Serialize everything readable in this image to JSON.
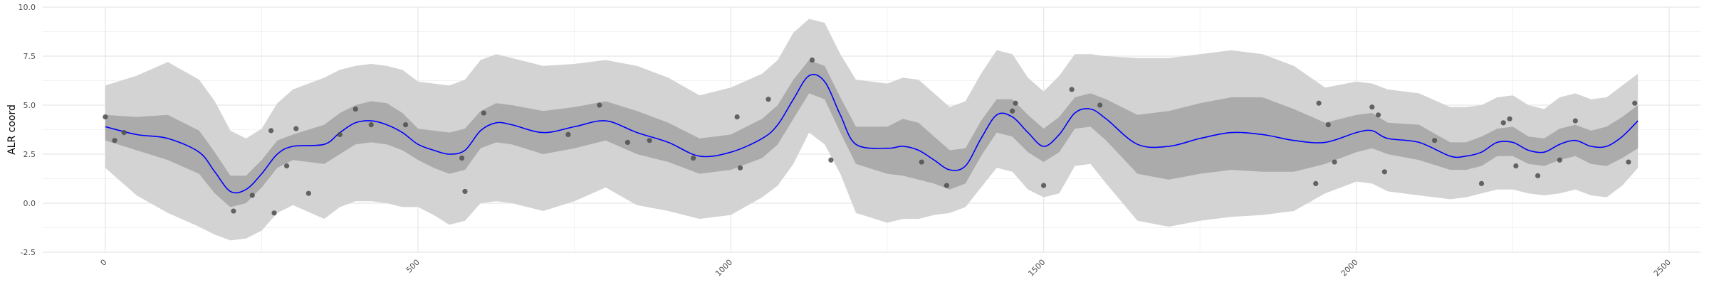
{
  "chart_data": {
    "type": "line",
    "title": "",
    "xlabel": "",
    "ylabel": "ALR coord",
    "xlim": [
      -100,
      2550
    ],
    "ylim": [
      -2.5,
      10.0
    ],
    "x_ticks": [
      0,
      500,
      1000,
      1500,
      2000,
      2500
    ],
    "y_ticks": [
      -2.5,
      0.0,
      2.5,
      5.0,
      7.5,
      10.0
    ],
    "x_tick_labels": [
      "0",
      "500",
      "1000",
      "1500",
      "2000",
      "2500"
    ],
    "y_tick_labels": [
      "-2.5",
      "0.0",
      "2.5",
      "5.0",
      "7.5",
      "10.0"
    ],
    "grid": true,
    "legend": "none",
    "colors": {
      "mean_line": "#0000ff",
      "inner_band": "#ababab",
      "outer_band": "#d3d3d3",
      "points": "#4d4d4d",
      "grid_major": "#e6e6e6",
      "grid_minor": "#f2f2f2"
    },
    "series": [
      {
        "kind": "line",
        "x": [
          0,
          50,
          100,
          150,
          175,
          200,
          225,
          250,
          275,
          300,
          350,
          375,
          400,
          425,
          450,
          475,
          500,
          525,
          550,
          575,
          600,
          625,
          650,
          700,
          750,
          800,
          850,
          900,
          950,
          1000,
          1050,
          1075,
          1100,
          1125,
          1150,
          1175,
          1200,
          1250,
          1275,
          1300,
          1325,
          1350,
          1375,
          1400,
          1425,
          1450,
          1475,
          1500,
          1525,
          1550,
          1575,
          1600,
          1650,
          1700,
          1750,
          1800,
          1850,
          1900,
          1950,
          2000,
          2025,
          2050,
          2100,
          2150,
          2175,
          2200,
          2225,
          2250,
          2275,
          2300,
          2325,
          2350,
          2375,
          2400,
          2425,
          2450
        ],
        "y": [
          3.9,
          3.5,
          3.3,
          2.6,
          1.6,
          0.6,
          0.7,
          1.5,
          2.5,
          2.9,
          3.0,
          3.6,
          4.1,
          4.2,
          4.0,
          3.6,
          3.0,
          2.7,
          2.5,
          2.7,
          3.7,
          4.1,
          4.0,
          3.6,
          3.9,
          4.2,
          3.6,
          3.1,
          2.4,
          2.6,
          3.3,
          4.0,
          5.3,
          6.5,
          6.2,
          4.5,
          3.0,
          2.8,
          2.9,
          2.7,
          2.2,
          1.7,
          1.9,
          3.3,
          4.5,
          4.4,
          3.6,
          2.9,
          3.5,
          4.6,
          4.8,
          4.3,
          3.0,
          2.9,
          3.3,
          3.6,
          3.5,
          3.2,
          3.1,
          3.6,
          3.7,
          3.3,
          3.1,
          2.4,
          2.4,
          2.6,
          3.1,
          3.1,
          2.7,
          2.6,
          3.0,
          3.2,
          2.9,
          2.9,
          3.4,
          4.2
        ]
      },
      {
        "kind": "band-inner",
        "x": [
          0,
          50,
          100,
          150,
          175,
          200,
          225,
          250,
          275,
          300,
          350,
          375,
          400,
          425,
          450,
          475,
          500,
          525,
          550,
          575,
          600,
          625,
          650,
          700,
          750,
          800,
          850,
          900,
          950,
          1000,
          1050,
          1075,
          1100,
          1125,
          1150,
          1175,
          1200,
          1250,
          1275,
          1300,
          1325,
          1350,
          1375,
          1400,
          1425,
          1450,
          1475,
          1500,
          1525,
          1550,
          1575,
          1600,
          1650,
          1700,
          1750,
          1800,
          1850,
          1900,
          1950,
          2000,
          2025,
          2050,
          2100,
          2150,
          2175,
          2200,
          2225,
          2250,
          2275,
          2300,
          2325,
          2350,
          2375,
          2400,
          2425,
          2450
        ],
        "lower": [
          3.2,
          2.7,
          2.2,
          1.5,
          0.5,
          -0.2,
          0.0,
          0.8,
          1.8,
          2.2,
          2.0,
          2.5,
          3.0,
          3.1,
          3.0,
          2.7,
          2.2,
          1.8,
          1.5,
          1.7,
          2.8,
          3.1,
          3.0,
          2.5,
          2.8,
          3.2,
          2.5,
          2.1,
          1.5,
          1.7,
          2.3,
          3.0,
          4.3,
          5.6,
          5.3,
          3.6,
          2.0,
          1.5,
          1.4,
          1.2,
          1.0,
          0.7,
          1.0,
          2.4,
          3.6,
          3.4,
          2.6,
          2.1,
          2.6,
          3.8,
          3.9,
          3.2,
          1.5,
          1.2,
          1.5,
          1.7,
          1.6,
          1.6,
          2.0,
          2.6,
          2.8,
          2.5,
          2.2,
          1.7,
          1.7,
          1.9,
          2.4,
          2.4,
          2.0,
          1.9,
          2.2,
          2.4,
          2.0,
          1.9,
          2.3,
          2.8
        ],
        "upper": [
          4.5,
          4.4,
          4.5,
          3.7,
          2.6,
          1.4,
          1.4,
          2.2,
          3.2,
          3.5,
          4.0,
          4.6,
          5.0,
          5.2,
          5.1,
          4.6,
          3.8,
          3.7,
          3.6,
          3.8,
          4.7,
          5.1,
          5.0,
          4.7,
          4.9,
          5.2,
          4.7,
          4.1,
          3.3,
          3.5,
          4.3,
          5.0,
          6.3,
          7.3,
          7.0,
          5.4,
          3.9,
          3.9,
          4.3,
          4.1,
          3.4,
          2.7,
          2.8,
          4.2,
          5.3,
          5.3,
          4.5,
          3.8,
          4.4,
          5.4,
          5.6,
          5.3,
          4.5,
          4.7,
          5.1,
          5.4,
          5.4,
          4.8,
          4.1,
          4.5,
          4.6,
          4.1,
          4.0,
          3.1,
          3.1,
          3.4,
          3.8,
          3.9,
          3.4,
          3.3,
          3.8,
          4.0,
          3.7,
          3.9,
          4.4,
          5.0
        ]
      },
      {
        "kind": "band-outer",
        "x": [
          0,
          50,
          100,
          150,
          175,
          200,
          225,
          250,
          275,
          300,
          350,
          375,
          400,
          425,
          450,
          475,
          500,
          525,
          550,
          575,
          600,
          625,
          650,
          700,
          750,
          800,
          850,
          900,
          950,
          1000,
          1050,
          1075,
          1100,
          1125,
          1150,
          1175,
          1200,
          1250,
          1275,
          1300,
          1325,
          1350,
          1375,
          1400,
          1425,
          1450,
          1475,
          1500,
          1525,
          1550,
          1575,
          1600,
          1650,
          1700,
          1750,
          1800,
          1850,
          1900,
          1950,
          2000,
          2025,
          2050,
          2100,
          2150,
          2175,
          2200,
          2225,
          2250,
          2275,
          2300,
          2325,
          2350,
          2375,
          2400,
          2425,
          2450
        ],
        "lower": [
          1.8,
          0.4,
          -0.5,
          -1.2,
          -1.6,
          -1.9,
          -1.8,
          -1.4,
          -0.5,
          -0.1,
          -0.8,
          -0.2,
          0.1,
          0.1,
          0.0,
          -0.2,
          -0.2,
          -0.6,
          -1.1,
          -0.9,
          0.0,
          0.1,
          0.0,
          -0.4,
          0.1,
          0.8,
          -0.1,
          -0.4,
          -0.8,
          -0.6,
          0.3,
          0.9,
          2.0,
          3.6,
          3.0,
          1.5,
          -0.5,
          -1.0,
          -0.8,
          -0.8,
          -0.6,
          -0.5,
          -0.2,
          0.8,
          1.8,
          1.6,
          0.7,
          0.3,
          0.5,
          1.9,
          2.0,
          1.0,
          -0.9,
          -1.2,
          -0.9,
          -0.7,
          -0.6,
          -0.4,
          0.5,
          1.1,
          1.0,
          0.6,
          0.4,
          0.2,
          0.3,
          0.5,
          0.7,
          0.7,
          0.5,
          0.4,
          0.5,
          0.7,
          0.4,
          0.3,
          0.9,
          1.8
        ],
        "upper": [
          6.0,
          6.5,
          7.2,
          6.3,
          5.2,
          3.7,
          3.3,
          3.8,
          5.1,
          5.8,
          6.4,
          6.8,
          7.0,
          7.1,
          7.0,
          6.8,
          6.2,
          6.1,
          6.0,
          6.3,
          7.3,
          7.6,
          7.4,
          7.0,
          7.1,
          7.3,
          7.0,
          6.4,
          5.5,
          5.9,
          6.6,
          7.3,
          8.7,
          9.4,
          9.2,
          7.6,
          6.3,
          6.1,
          6.4,
          6.3,
          5.6,
          4.9,
          5.2,
          6.6,
          7.8,
          7.6,
          6.4,
          5.7,
          6.5,
          7.6,
          7.6,
          7.5,
          7.4,
          7.4,
          7.6,
          7.8,
          7.6,
          7.0,
          5.9,
          6.2,
          6.1,
          5.8,
          5.6,
          4.9,
          4.9,
          5.0,
          5.4,
          5.5,
          5.0,
          4.8,
          5.4,
          5.6,
          5.3,
          5.4,
          6.0,
          6.6
        ]
      },
      {
        "kind": "points",
        "x": [
          0,
          15,
          30,
          205,
          235,
          265,
          270,
          290,
          305,
          325,
          375,
          400,
          425,
          480,
          570,
          575,
          605,
          740,
          790,
          835,
          870,
          940,
          1010,
          1015,
          1060,
          1130,
          1160,
          1305,
          1345,
          1450,
          1455,
          1500,
          1545,
          1590,
          1935,
          1940,
          1955,
          1965,
          2025,
          2035,
          2045,
          2125,
          2200,
          2235,
          2245,
          2255,
          2290,
          2325,
          2350,
          2435,
          2445
        ],
        "y": [
          4.4,
          3.2,
          3.6,
          -0.4,
          0.4,
          3.7,
          -0.5,
          1.9,
          3.8,
          0.5,
          3.5,
          4.8,
          4.0,
          4.0,
          2.3,
          0.6,
          4.6,
          3.5,
          5.0,
          3.1,
          3.2,
          2.3,
          4.4,
          1.8,
          5.3,
          7.3,
          2.2,
          2.1,
          0.9,
          4.7,
          5.1,
          0.9,
          5.8,
          5.0,
          1.0,
          5.1,
          4.0,
          2.1,
          4.9,
          4.5,
          1.6,
          3.2,
          1.0,
          4.1,
          4.3,
          1.9,
          1.4,
          2.2,
          4.2,
          2.1,
          5.1
        ]
      }
    ]
  }
}
